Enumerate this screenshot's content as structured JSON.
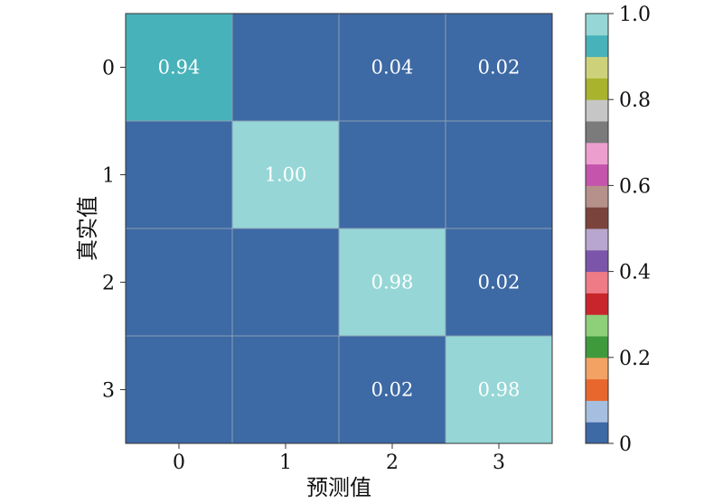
{
  "chart_data": {
    "type": "heatmap",
    "title": "",
    "xlabel": "预测值",
    "ylabel": "真实值",
    "x_categories": [
      "0",
      "1",
      "2",
      "3"
    ],
    "y_categories": [
      "0",
      "1",
      "2",
      "3"
    ],
    "values": [
      [
        0.94,
        0.0,
        0.04,
        0.02
      ],
      [
        0.0,
        1.0,
        0.0,
        0.0
      ],
      [
        0.0,
        0.0,
        0.98,
        0.02
      ],
      [
        0.0,
        0.0,
        0.02,
        0.98
      ]
    ],
    "cell_labels": [
      [
        "0.94",
        "",
        "0.04",
        "0.02"
      ],
      [
        "",
        "1.00",
        "",
        ""
      ],
      [
        "",
        "",
        "0.98",
        "0.02"
      ],
      [
        "",
        "",
        "0.02",
        "0.98"
      ]
    ],
    "colorbar": {
      "range": [
        0,
        1
      ],
      "ticks": [
        0,
        0.2,
        0.4,
        0.6,
        0.8,
        1.0
      ],
      "tick_labels": [
        "0",
        "0.2",
        "0.4",
        "0.6",
        "0.8",
        "1.0"
      ],
      "colors": [
        "#3d69a4",
        "#a6bfe0",
        "#e8672d",
        "#f2a264",
        "#3f9a3c",
        "#8ecf7a",
        "#c8262c",
        "#ee7b86",
        "#7b55a9",
        "#b8a6cf",
        "#7a443d",
        "#b6918b",
        "#c554ad",
        "#ec9fcf",
        "#7b7b7b",
        "#c6c6c6",
        "#a9b32d",
        "#cdd27a",
        "#47b2b9",
        "#96d6d6"
      ]
    }
  }
}
